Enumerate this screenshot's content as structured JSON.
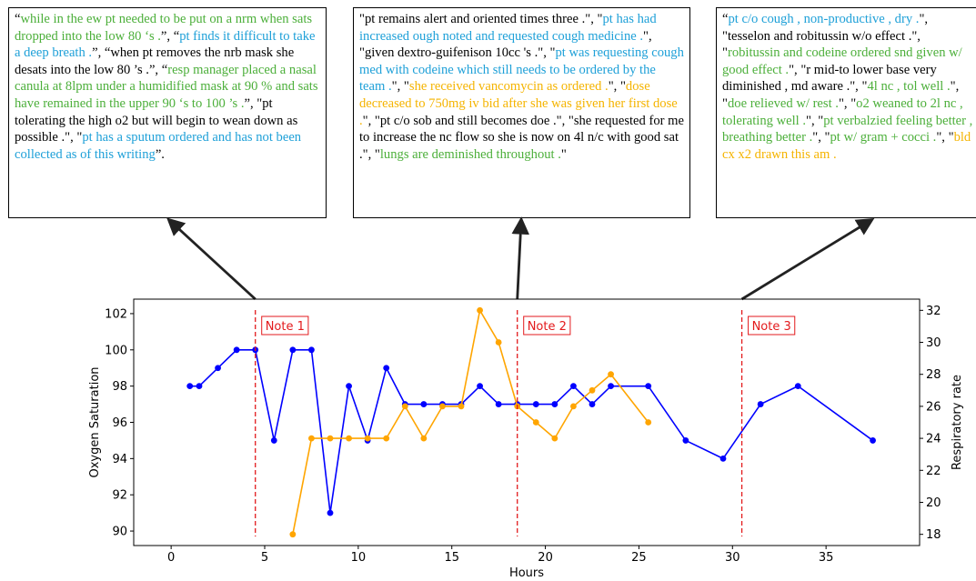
{
  "notes": [
    {
      "label": "Note 1",
      "segments": [
        {
          "text": "“",
          "color": "black"
        },
        {
          "text": "while in the ew pt needed to be put on a nrm when sats dropped into the low 80 ‘s .",
          "color": "green"
        },
        {
          "text": "”, “",
          "color": "black"
        },
        {
          "text": "pt finds it difficult to take a deep breath .",
          "color": "blue"
        },
        {
          "text": "”, “when pt removes the nrb mask she desats into the low 80 ’s .”, “",
          "color": "black"
        },
        {
          "text": "resp manager placed a nasal canula at 8lpm under a humidified mask at 90 % and sats have remained in the upper 90 ‘s to 100 ’s .",
          "color": "green"
        },
        {
          "text": "”, \"pt tolerating the high o2 but will begin to wean down as possible .\", \"",
          "color": "black"
        },
        {
          "text": "pt has a sputum ordered and has not been collected as of this writing",
          "color": "blue"
        },
        {
          "text": "”.",
          "color": "black"
        }
      ]
    },
    {
      "label": "Note 2",
      "segments": [
        {
          "text": "\"pt remains alert and oriented times three .\", \"",
          "color": "black"
        },
        {
          "text": "pt has had increased ough noted and requested cough medicine .",
          "color": "blue"
        },
        {
          "text": "\", \"given dextro-guifenison 10cc 's .\", \"",
          "color": "black"
        },
        {
          "text": "pt was requesting cough med with codeine which still needs to be ordered by the team .",
          "color": "blue"
        },
        {
          "text": "\", \"",
          "color": "black"
        },
        {
          "text": "she received vancomycin as ordered .",
          "color": "orange"
        },
        {
          "text": "\", \"",
          "color": "black"
        },
        {
          "text": "dose decreased to 750mg iv bid after she was given her first dose .",
          "color": "orange"
        },
        {
          "text": "\", \"pt c/o sob and still becomes doe .\", \"she requested for me to increase the nc flow so she is now on 4l n/c with good sat .\", \"",
          "color": "black"
        },
        {
          "text": "lungs are deminished throughout .",
          "color": "green"
        },
        {
          "text": "\"",
          "color": "black"
        }
      ]
    },
    {
      "label": "Note 3",
      "segments": [
        {
          "text": "“",
          "color": "black"
        },
        {
          "text": "pt c/o cough , non-productive , dry .",
          "color": "blue"
        },
        {
          "text": "\", \"tesselon and robitussin w/o effect .\", \"",
          "color": "black"
        },
        {
          "text": "robitussin and codeine ordered snd given w/ good effect .",
          "color": "green"
        },
        {
          "text": "\", \"r mid-to lower base very diminished , md aware .\", \"",
          "color": "black"
        },
        {
          "text": "4l nc , tol well .",
          "color": "green"
        },
        {
          "text": "\", \"",
          "color": "black"
        },
        {
          "text": "doe relieved w/ rest .",
          "color": "green"
        },
        {
          "text": "\", \"",
          "color": "black"
        },
        {
          "text": "o2 weaned to 2l nc , tolerating well .",
          "color": "green"
        },
        {
          "text": "\", \"",
          "color": "black"
        },
        {
          "text": "pt verbalzied feeling better , breathing better .",
          "color": "green"
        },
        {
          "text": "\", \"",
          "color": "black"
        },
        {
          "text": "pt w/ gram + cocci .",
          "color": "green"
        },
        {
          "text": "\", \"",
          "color": "black"
        },
        {
          "text": "bld cx x2 drawn this am .",
          "color": "orange"
        }
      ]
    }
  ],
  "colors": {
    "black": "#000000",
    "green": "#4caf3a",
    "blue": "#1ea0d8",
    "orange": "#f5b400",
    "spo2_line": "#0000ff",
    "resp_line": "#ffa500",
    "note_marker": "#e31a1c",
    "arrow": "#222222"
  },
  "chart_data": {
    "type": "line",
    "xlabel": "Hours",
    "ylabel_left": "Oxygen Saturation",
    "ylabel_right": "Respiratory rate",
    "xlim": [
      -2,
      40
    ],
    "ylim_left": [
      89.2,
      102.8
    ],
    "ylim_right": [
      17.3,
      32.7
    ],
    "x_ticks": [
      0,
      5,
      10,
      15,
      20,
      25,
      30,
      35
    ],
    "y_ticks_left": [
      90,
      92,
      94,
      96,
      98,
      100,
      102
    ],
    "y_ticks_right": [
      18,
      20,
      22,
      24,
      26,
      28,
      30,
      32
    ],
    "series": [
      {
        "axis": "left",
        "color": "#0000ff",
        "x": [
          1,
          1.5,
          2.5,
          3.5,
          4.5,
          5.5,
          6.5,
          7.5,
          8.5,
          9.5,
          10.5,
          11.5,
          12.5,
          13.5,
          14.5,
          15.5,
          16.5,
          17.5,
          18.5,
          19.5,
          20.5,
          21.5,
          22.5,
          23.5,
          25.5,
          27.5,
          29.5,
          31.5,
          33.5,
          37.5
        ],
        "values": [
          98,
          98,
          99,
          100,
          100,
          95,
          100,
          100,
          91,
          98,
          95,
          99,
          97,
          97,
          97,
          97,
          98,
          97,
          97,
          97,
          97,
          98,
          97,
          98,
          98,
          95,
          94,
          97,
          98,
          95
        ]
      },
      {
        "axis": "right",
        "color": "#ffa500",
        "x": [
          6.5,
          7.5,
          8.5,
          9.5,
          10.5,
          11.5,
          12.5,
          13.5,
          14.5,
          15.5,
          16.5,
          17.5,
          18.5,
          19.5,
          20.5,
          21.5,
          22.5,
          23.5,
          25.5
        ],
        "values": [
          18,
          24,
          24,
          24,
          24,
          24,
          26,
          24,
          26,
          26,
          32,
          30,
          26,
          25,
          24,
          26,
          27,
          28,
          25
        ]
      }
    ],
    "markers": [
      {
        "label": "Note 1",
        "x": 4.5
      },
      {
        "label": "Note 2",
        "x": 18.5
      },
      {
        "label": "Note 3",
        "x": 30.5
      }
    ],
    "grid": false,
    "legend": "none"
  }
}
